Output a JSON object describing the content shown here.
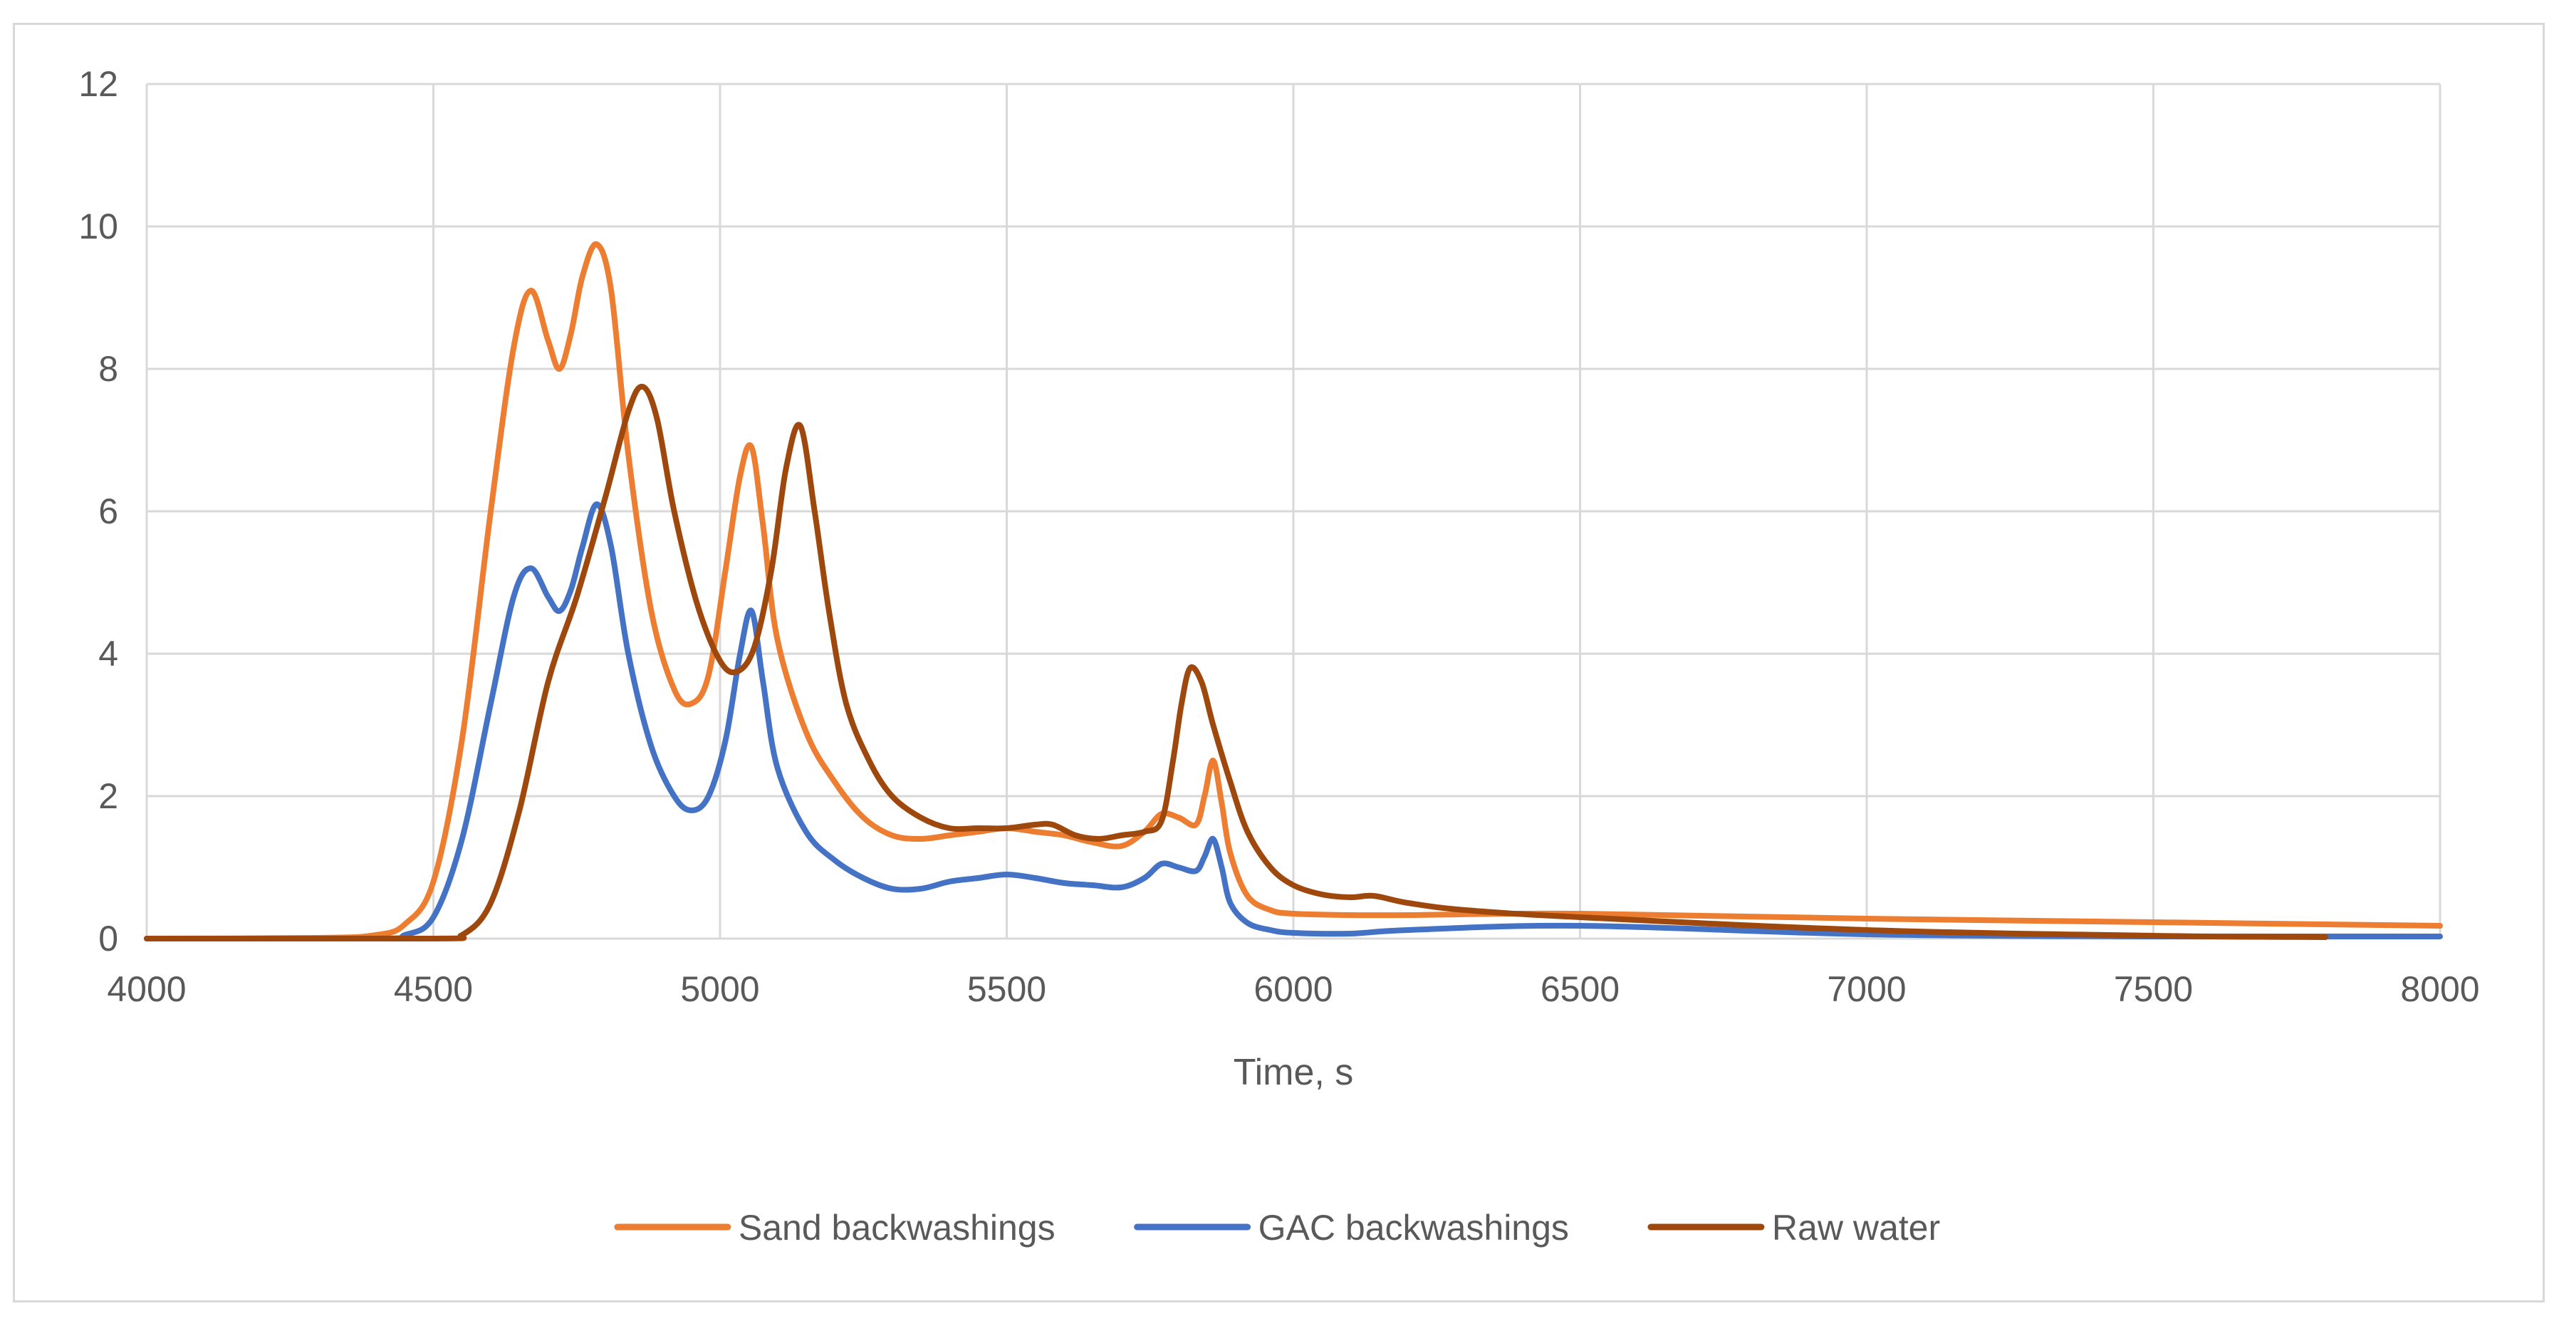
{
  "chart_data": {
    "type": "line",
    "title": "",
    "xlabel": "Time, s",
    "ylabel": "",
    "xlim": [
      4000,
      8000
    ],
    "ylim": [
      0,
      12
    ],
    "x_ticks": [
      4000,
      4500,
      5000,
      5500,
      6000,
      6500,
      7000,
      7500,
      8000
    ],
    "y_ticks": [
      0,
      2,
      4,
      6,
      8,
      10,
      12
    ],
    "grid": true,
    "legend_position": "bottom",
    "series": [
      {
        "name": "Sand backwashings",
        "color": "#ED7D31",
        "x": [
          4000,
          4300,
          4400,
          4450,
          4500,
          4550,
          4600,
          4640,
          4670,
          4700,
          4720,
          4740,
          4760,
          4785,
          4810,
          4840,
          4880,
          4920,
          4950,
          4980,
          5010,
          5035,
          5055,
          5075,
          5100,
          5150,
          5200,
          5250,
          5300,
          5350,
          5400,
          5450,
          5500,
          5550,
          5600,
          5650,
          5700,
          5740,
          5770,
          5800,
          5830,
          5845,
          5860,
          5875,
          5890,
          5920,
          5960,
          6000,
          6100,
          6200,
          6500,
          7000,
          7500,
          8000
        ],
        "y": [
          0.0,
          0.01,
          0.05,
          0.2,
          0.8,
          2.8,
          6.0,
          8.3,
          9.1,
          8.4,
          8.0,
          8.5,
          9.3,
          9.75,
          9.1,
          6.8,
          4.6,
          3.5,
          3.3,
          3.7,
          5.2,
          6.5,
          6.9,
          5.8,
          4.2,
          2.9,
          2.2,
          1.7,
          1.45,
          1.4,
          1.45,
          1.5,
          1.55,
          1.5,
          1.45,
          1.35,
          1.3,
          1.5,
          1.75,
          1.7,
          1.6,
          2.0,
          2.5,
          1.9,
          1.2,
          0.6,
          0.4,
          0.35,
          0.33,
          0.33,
          0.35,
          0.28,
          0.23,
          0.18
        ]
      },
      {
        "name": "GAC backwashings",
        "color": "#4472C4",
        "x": [
          4000,
          4400,
          4450,
          4500,
          4550,
          4600,
          4640,
          4670,
          4700,
          4720,
          4740,
          4760,
          4785,
          4810,
          4840,
          4880,
          4920,
          4950,
          4980,
          5010,
          5035,
          5055,
          5075,
          5100,
          5150,
          5200,
          5250,
          5300,
          5350,
          5400,
          5450,
          5500,
          5550,
          5600,
          5650,
          5700,
          5740,
          5770,
          5800,
          5830,
          5845,
          5860,
          5875,
          5890,
          5920,
          5960,
          6000,
          6100,
          6200,
          6500,
          7000,
          7500,
          7800,
          8000
        ],
        "y": [
          0.0,
          0.0,
          0.05,
          0.3,
          1.4,
          3.3,
          4.8,
          5.2,
          4.8,
          4.6,
          4.9,
          5.5,
          6.1,
          5.5,
          4.0,
          2.7,
          2.0,
          1.8,
          2.0,
          2.8,
          4.0,
          4.6,
          3.6,
          2.4,
          1.5,
          1.1,
          0.85,
          0.7,
          0.7,
          0.8,
          0.85,
          0.9,
          0.85,
          0.78,
          0.75,
          0.72,
          0.85,
          1.05,
          1.0,
          0.95,
          1.15,
          1.4,
          1.0,
          0.5,
          0.22,
          0.12,
          0.08,
          0.07,
          0.12,
          0.18,
          0.06,
          0.03,
          0.03,
          0.03
        ]
      },
      {
        "name": "Raw water",
        "color": "#9E480E",
        "x": [
          4000,
          4500,
          4550,
          4600,
          4650,
          4700,
          4750,
          4800,
          4840,
          4865,
          4890,
          4920,
          4960,
          5000,
          5030,
          5060,
          5090,
          5115,
          5140,
          5165,
          5190,
          5220,
          5260,
          5300,
          5350,
          5400,
          5450,
          5500,
          5550,
          5580,
          5620,
          5660,
          5700,
          5740,
          5770,
          5790,
          5805,
          5820,
          5840,
          5860,
          5890,
          5920,
          5960,
          6000,
          6050,
          6100,
          6140,
          6200,
          6300,
          6500,
          7000,
          7500,
          7800
        ],
        "y": [
          0.0,
          0.0,
          0.05,
          0.5,
          1.8,
          3.6,
          4.8,
          6.2,
          7.4,
          7.75,
          7.3,
          6.0,
          4.7,
          3.9,
          3.75,
          4.1,
          5.2,
          6.6,
          7.2,
          6.0,
          4.6,
          3.3,
          2.5,
          2.0,
          1.7,
          1.55,
          1.55,
          1.55,
          1.6,
          1.6,
          1.45,
          1.4,
          1.45,
          1.5,
          1.65,
          2.5,
          3.3,
          3.8,
          3.6,
          3.0,
          2.2,
          1.5,
          1.0,
          0.75,
          0.62,
          0.58,
          0.6,
          0.5,
          0.4,
          0.3,
          0.12,
          0.04,
          0.02
        ]
      }
    ]
  }
}
